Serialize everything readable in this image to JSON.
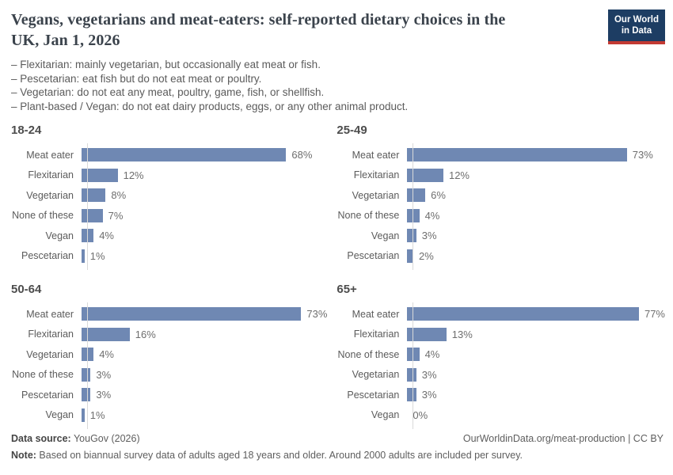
{
  "header": {
    "title": "Vegans, vegetarians and meat-eaters: self-reported dietary choices in the UK, Jan 1, 2026",
    "logo": {
      "line1": "Our World",
      "line2": "in Data"
    }
  },
  "subtitle_lines": [
    "– Flexitarian: mainly vegetarian, but occasionally eat meat or fish.",
    "– Pescetarian: eat fish but do not eat meat or poultry.",
    "– Vegetarian: do not eat any meat, poultry, game, fish, or shellfish.",
    "– Plant-based / Vegan: do not eat dairy products, eggs, or any other animal product."
  ],
  "chart_data": [
    {
      "type": "bar",
      "orientation": "horizontal",
      "title": "18-24",
      "unit": "%",
      "xlim": [
        0,
        100
      ],
      "grid": false,
      "categories": [
        "Meat eater",
        "Flexitarian",
        "Vegetarian",
        "None of these",
        "Vegan",
        "Pescetarian"
      ],
      "values": [
        68,
        12,
        8,
        7,
        4,
        1
      ],
      "value_labels": [
        "68%",
        "12%",
        "8%",
        "7%",
        "4%",
        "1%"
      ]
    },
    {
      "type": "bar",
      "orientation": "horizontal",
      "title": "25-49",
      "unit": "%",
      "xlim": [
        0,
        100
      ],
      "grid": false,
      "categories": [
        "Meat eater",
        "Flexitarian",
        "Vegetarian",
        "None of these",
        "Vegan",
        "Pescetarian"
      ],
      "values": [
        73,
        12,
        6,
        4,
        3,
        2
      ],
      "value_labels": [
        "73%",
        "12%",
        "6%",
        "4%",
        "3%",
        "2%"
      ]
    },
    {
      "type": "bar",
      "orientation": "horizontal",
      "title": "50-64",
      "unit": "%",
      "xlim": [
        0,
        100
      ],
      "grid": false,
      "categories": [
        "Meat eater",
        "Flexitarian",
        "Vegetarian",
        "None of these",
        "Pescetarian",
        "Vegan"
      ],
      "values": [
        73,
        16,
        4,
        3,
        3,
        1
      ],
      "value_labels": [
        "73%",
        "16%",
        "4%",
        "3%",
        "3%",
        "1%"
      ]
    },
    {
      "type": "bar",
      "orientation": "horizontal",
      "title": "65+",
      "unit": "%",
      "xlim": [
        0,
        100
      ],
      "grid": false,
      "categories": [
        "Meat eater",
        "Flexitarian",
        "None of these",
        "Vegetarian",
        "Pescetarian",
        "Vegan"
      ],
      "values": [
        77,
        13,
        4,
        3,
        3,
        0
      ],
      "value_labels": [
        "77%",
        "13%",
        "4%",
        "3%",
        "3%",
        "0%"
      ]
    }
  ],
  "style": {
    "bar_color": "#6f88b3",
    "logo_navy": "#1d3d63",
    "logo_red": "#c23a33"
  },
  "footer": {
    "source_label": "Data source:",
    "source_text": " YouGov (2026)",
    "url_text": "OurWorldinData.org/meat-production | CC BY",
    "note_label": "Note:",
    "note_text": " Based on biannual survey data of adults aged 18 years and older. Around 2000 adults are included per survey."
  }
}
